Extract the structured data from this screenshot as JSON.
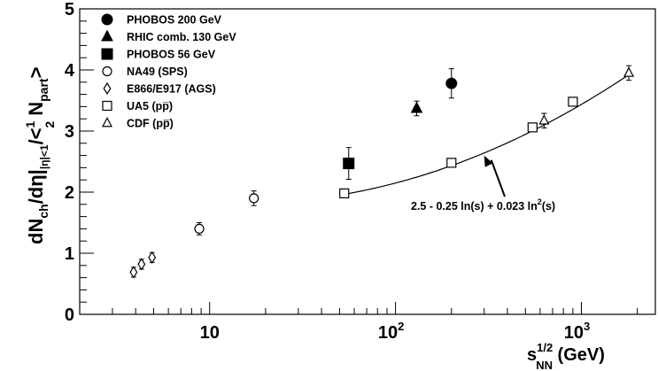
{
  "chart_data": {
    "type": "scatter",
    "x_scale": "log",
    "xlim": [
      2,
      2500
    ],
    "ylim": [
      0,
      5
    ],
    "grid": false,
    "legend_position": "top-left",
    "xlabel": {
      "base": "s",
      "sup": "1/2",
      "sub": "NN",
      "unit": " (GeV)"
    },
    "ylabel": {
      "p1": "dN",
      "s1": "ch",
      "p2": "/dη|",
      "s2": "|η|<1",
      "p3": "/<",
      "num": "1",
      "den": "2",
      "p4": " N",
      "s4": "part",
      "p5": ">"
    },
    "y_ticks": [
      "0",
      "1",
      "2",
      "3",
      "4",
      "5"
    ],
    "x_tick_labels": [
      {
        "x": 10,
        "base": "10",
        "exp": ""
      },
      {
        "x": 100,
        "base": "10",
        "exp": "2"
      },
      {
        "x": 1000,
        "base": "10",
        "exp": "3"
      }
    ],
    "series": [
      {
        "name": "PHOBOS 200 GeV",
        "marker": "filled-circle",
        "points": [
          {
            "x": 200,
            "y": 3.78,
            "err": 0.24
          }
        ]
      },
      {
        "name": "RHIC comb. 130 GeV",
        "marker": "filled-triangle",
        "points": [
          {
            "x": 130,
            "y": 3.37,
            "err": 0.12
          }
        ]
      },
      {
        "name": "PHOBOS 56 GeV",
        "marker": "filled-square",
        "points": [
          {
            "x": 56,
            "y": 2.47,
            "err": 0.26
          }
        ]
      },
      {
        "name": "NA49 (SPS)",
        "marker": "open-circle",
        "points": [
          {
            "x": 8.8,
            "y": 1.4,
            "err": 0.1
          },
          {
            "x": 17.3,
            "y": 1.9,
            "err": 0.12
          }
        ]
      },
      {
        "name": "E866/E917 (AGS)",
        "marker": "open-diamond",
        "points": [
          {
            "x": 3.9,
            "y": 0.69,
            "err": 0.08
          },
          {
            "x": 4.3,
            "y": 0.82,
            "err": 0.08
          },
          {
            "x": 4.9,
            "y": 0.93,
            "err": 0.08
          }
        ]
      },
      {
        "name": "UA5 (pp̅)",
        "marker": "open-square",
        "points": [
          {
            "x": 53,
            "y": 1.98,
            "err": 0.07
          },
          {
            "x": 200,
            "y": 2.48,
            "err": 0.05
          },
          {
            "x": 546,
            "y": 3.06,
            "err": 0.05
          },
          {
            "x": 900,
            "y": 3.48,
            "err": 0.05
          }
        ]
      },
      {
        "name": "CDF (pp̅)",
        "marker": "open-triangle",
        "points": [
          {
            "x": 630,
            "y": 3.17,
            "err": 0.12
          },
          {
            "x": 1800,
            "y": 3.95,
            "err": 0.12
          }
        ]
      }
    ],
    "fit": {
      "label": "2.5 - 0.25 ln(s) + 0.023 ln²(s)",
      "x_range": [
        53,
        1800
      ],
      "a": 2.5,
      "b": -0.25,
      "c": 0.023
    },
    "annotation": {
      "text_pre": "2.5 - 0.25 ln(s) + 0.023 ln",
      "text_sup": "2",
      "text_post": "(s)"
    }
  }
}
